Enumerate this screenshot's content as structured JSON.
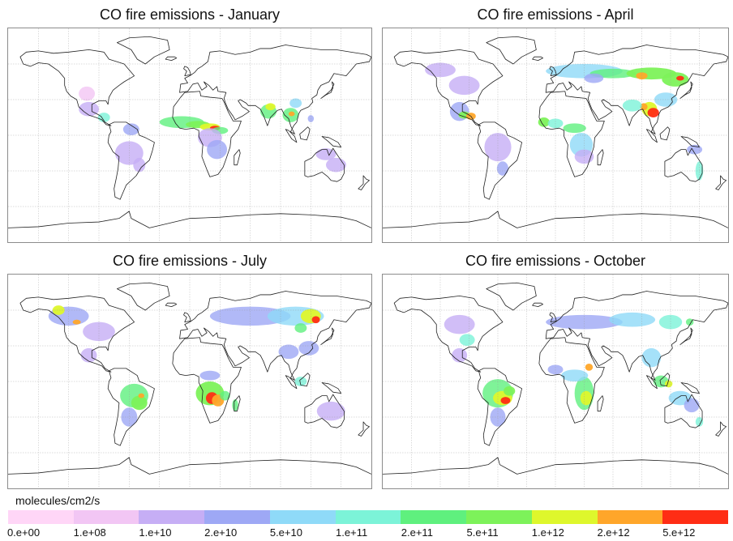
{
  "panels": [
    {
      "title": "CO fire emissions - January",
      "month": "January"
    },
    {
      "title": "CO fire emissions - April",
      "month": "April"
    },
    {
      "title": "CO fire emissions - July",
      "month": "July"
    },
    {
      "title": "CO fire emissions - October",
      "month": "October"
    }
  ],
  "legend": {
    "units": "molecules/cm2/s",
    "tick_labels": [
      "0.e+00",
      "1.e+08",
      "1.e+10",
      "2.e+10",
      "5.e+10",
      "1.e+11",
      "2.e+11",
      "5.e+11",
      "1.e+12",
      "2.e+12",
      "5.e+12"
    ],
    "colors": [
      "#ffd6f7",
      "#f2c6f4",
      "#c6aef5",
      "#9ea8f5",
      "#8fdaf8",
      "#7cf3d8",
      "#5ff07e",
      "#7df25a",
      "#def72c",
      "#ffa62a",
      "#ff2d14"
    ]
  }
}
